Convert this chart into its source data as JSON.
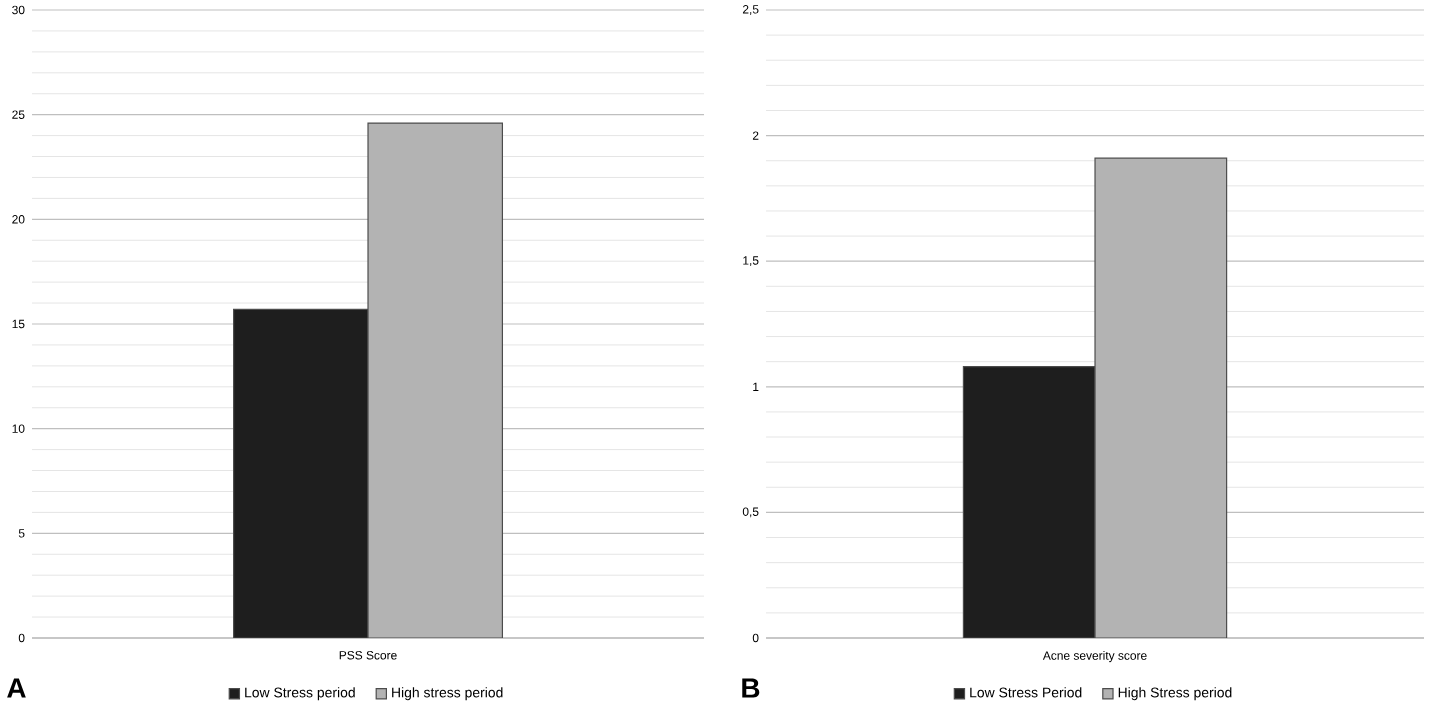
{
  "chart_data": [
    {
      "type": "bar",
      "categories": [
        "PSS Score"
      ],
      "series": [
        {
          "name": "Low Stress period",
          "color": "#1e1e1e",
          "values": [
            15.7
          ]
        },
        {
          "name": "High stress period",
          "color": "#b3b3b3",
          "values": [
            24.6
          ]
        }
      ],
      "ylim": [
        0,
        30
      ],
      "yticks": [
        0,
        5,
        10,
        15,
        20,
        25,
        30
      ],
      "grid": "y",
      "legend": "bottom",
      "annotations": [
        "A"
      ]
    },
    {
      "type": "bar",
      "categories": [
        "Acne severity score"
      ],
      "series": [
        {
          "name": "Low Stress Period",
          "color": "#1e1e1e",
          "values": [
            1.08
          ]
        },
        {
          "name": "High Stress period",
          "color": "#b3b3b3",
          "values": [
            1.91
          ]
        }
      ],
      "ylim": [
        0,
        2.5
      ],
      "yticks": [
        0,
        {
          "value": 0.5,
          "label": "0,5"
        },
        1,
        {
          "value": 1.5,
          "label": "1,5"
        },
        2,
        {
          "value": 2.5,
          "label": "2,5"
        }
      ],
      "grid": "y",
      "legend": "bottom",
      "annotations": [
        "B"
      ]
    }
  ]
}
